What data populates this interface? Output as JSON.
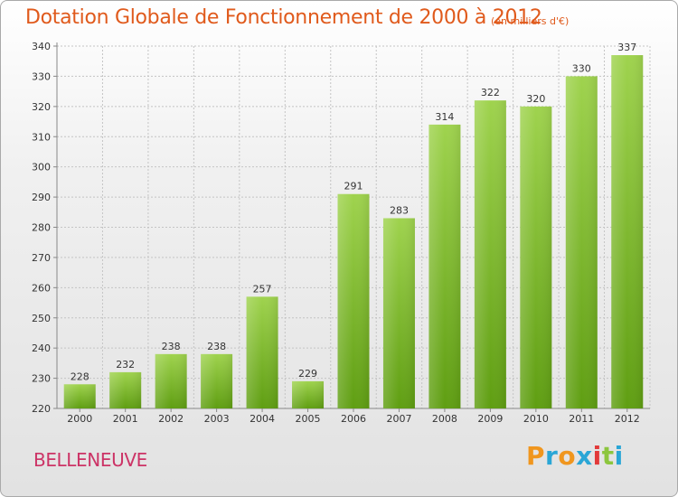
{
  "header": {
    "title": "Dotation Globale de Fonctionnement de 2000 à 2012",
    "unit": "(en milliers d'€)"
  },
  "footer": {
    "commune": "BELLENEUVE",
    "logo_text": "Proxiti",
    "logo_colors": [
      "#f0961e",
      "#2aa6d6",
      "#f0961e",
      "#2aa6d6",
      "#e23a3a",
      "#8cc63e",
      "#2aa6d6"
    ]
  },
  "colors": {
    "bar_top": "#9fd34e",
    "bar_bottom": "#5f9e12",
    "grid": "#c4c4c4",
    "axis": "#888888"
  },
  "chart_data": {
    "type": "bar",
    "title": "Dotation Globale de Fonctionnement de 2000 à 2012",
    "subtitle": "(en milliers d'€)",
    "xlabel": "",
    "ylabel": "",
    "categories": [
      "2000",
      "2001",
      "2002",
      "2003",
      "2004",
      "2005",
      "2006",
      "2007",
      "2008",
      "2009",
      "2010",
      "2011",
      "2012"
    ],
    "values": [
      228,
      232,
      238,
      238,
      257,
      229,
      291,
      283,
      314,
      322,
      320,
      330,
      337
    ],
    "ylim": [
      220,
      340
    ],
    "yticks": [
      220,
      230,
      240,
      250,
      260,
      270,
      280,
      290,
      300,
      310,
      320,
      330,
      340
    ],
    "grid": true,
    "data_labels": true
  }
}
